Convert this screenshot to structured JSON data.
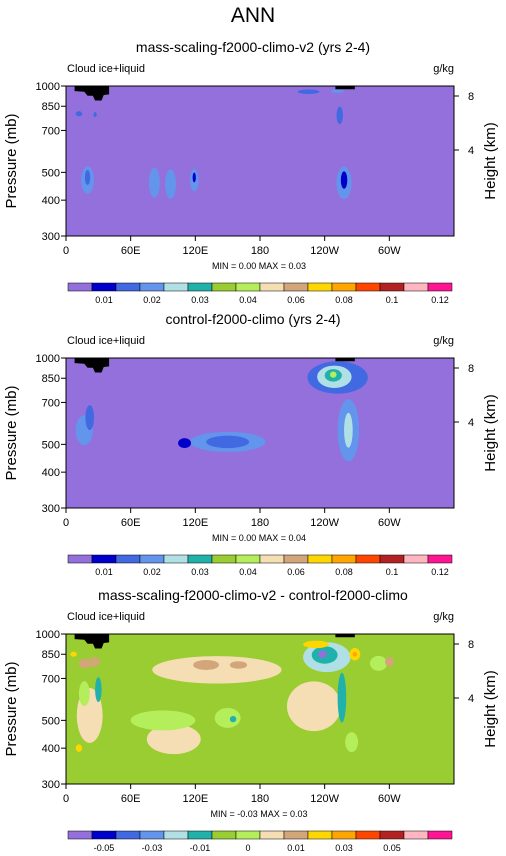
{
  "figure": {
    "title": "ANN"
  },
  "chart_data": [
    {
      "type": "heatmap",
      "title": "mass-scaling-f2000-climo-v2 (yrs 2-4)",
      "left_label": "Cloud ice+liquid",
      "units": "g/kg",
      "xlabel": "",
      "ylabel": "Pressure (mb)",
      "ylabel_right": "Height (km)",
      "x_ticks": [
        "0",
        "60E",
        "120E",
        "180",
        "120W",
        "60W"
      ],
      "x_tick_values": [
        0,
        60,
        120,
        180,
        240,
        300
      ],
      "xlim": [
        0,
        360
      ],
      "y_ticks": [
        "300",
        "400",
        "500",
        "700",
        "850",
        "1000"
      ],
      "y_tick_values": [
        300,
        400,
        500,
        700,
        850,
        1000
      ],
      "ylim": [
        1000,
        300
      ],
      "y_scale": "log",
      "right_ticks": [
        "8",
        "4"
      ],
      "stats": "MIN =   0.00  MAX =  0.03",
      "colorbar": {
        "colors": [
          "#9370DB",
          "#0000CD",
          "#4169E1",
          "#6495ED",
          "#B0E0E6",
          "#20B2AA",
          "#9ACD32",
          "#B4EE5A",
          "#F5DEB3",
          "#D2A679",
          "#FFD700",
          "#FFA500",
          "#FF4500",
          "#B22222",
          "#FFB6C1",
          "#FF1493"
        ],
        "labels": [
          "0.01",
          "0.02",
          "0.03",
          "0.04",
          "0.06",
          "0.08",
          "0.1",
          "0.12"
        ]
      },
      "background_color": "#9370DB",
      "blobs": [
        {
          "x": 20,
          "p": 470,
          "rx": 6,
          "ry": 0.11,
          "color": "#6495ED"
        },
        {
          "x": 20,
          "p": 480,
          "rx": 2.5,
          "ry": 0.06,
          "color": "#4169E1"
        },
        {
          "x": 82,
          "p": 460,
          "rx": 5,
          "ry": 0.12,
          "color": "#6495ED"
        },
        {
          "x": 97,
          "p": 455,
          "rx": 5,
          "ry": 0.12,
          "color": "#6495ED"
        },
        {
          "x": 119,
          "p": 470,
          "rx": 4,
          "ry": 0.09,
          "color": "#6495ED"
        },
        {
          "x": 119,
          "p": 480,
          "rx": 1.5,
          "ry": 0.04,
          "color": "#0000CD"
        },
        {
          "x": 258,
          "p": 460,
          "rx": 7,
          "ry": 0.13,
          "color": "#6495ED"
        },
        {
          "x": 258,
          "p": 470,
          "rx": 3,
          "ry": 0.07,
          "color": "#0000CD"
        },
        {
          "x": 254,
          "p": 790,
          "rx": 3,
          "ry": 0.07,
          "color": "#4169E1"
        },
        {
          "x": 12,
          "p": 800,
          "rx": 3,
          "ry": 0.02,
          "color": "#4169E1"
        },
        {
          "x": 27,
          "p": 795,
          "rx": 1.5,
          "ry": 0.02,
          "color": "#4169E1"
        },
        {
          "x": 225,
          "p": 955,
          "rx": 10,
          "ry": 0.018,
          "color": "#4169E1"
        },
        {
          "x": 252,
          "p": 960,
          "rx": 6,
          "ry": 0.015,
          "color": "#6495ED"
        }
      ],
      "topography": [
        [
          8,
          1000
        ],
        [
          8,
          960
        ],
        [
          17,
          955
        ],
        [
          20,
          925
        ],
        [
          25,
          925
        ],
        [
          27,
          890
        ],
        [
          33,
          890
        ],
        [
          35,
          930
        ],
        [
          40,
          935
        ],
        [
          40,
          1000
        ],
        [
          250,
          1000
        ],
        [
          250,
          975
        ],
        [
          268,
          975
        ],
        [
          268,
          1000
        ]
      ]
    },
    {
      "type": "heatmap",
      "title": "control-f2000-climo (yrs 2-4)",
      "left_label": "Cloud ice+liquid",
      "units": "g/kg",
      "xlabel": "",
      "ylabel": "Pressure (mb)",
      "ylabel_right": "Height (km)",
      "x_ticks": [
        "0",
        "60E",
        "120E",
        "180",
        "120W",
        "60W"
      ],
      "x_tick_values": [
        0,
        60,
        120,
        180,
        240,
        300
      ],
      "xlim": [
        0,
        360
      ],
      "y_ticks": [
        "300",
        "400",
        "500",
        "700",
        "850",
        "1000"
      ],
      "y_tick_values": [
        300,
        400,
        500,
        700,
        850,
        1000
      ],
      "ylim": [
        1000,
        300
      ],
      "y_scale": "log",
      "right_ticks": [
        "8",
        "4"
      ],
      "stats": "MIN =   0.00  MAX =  0.04",
      "colorbar": {
        "colors": [
          "#9370DB",
          "#0000CD",
          "#4169E1",
          "#6495ED",
          "#B0E0E6",
          "#20B2AA",
          "#9ACD32",
          "#B4EE5A",
          "#F5DEB3",
          "#D2A679",
          "#FFD700",
          "#FFA500",
          "#FF4500",
          "#B22222",
          "#FFB6C1",
          "#FF1493"
        ],
        "labels": [
          "0.01",
          "0.02",
          "0.03",
          "0.04",
          "0.06",
          "0.08",
          "0.1",
          "0.12"
        ]
      },
      "background_color": "#9370DB",
      "blobs": [
        {
          "x": 17,
          "p": 560,
          "rx": 8,
          "ry": 0.12,
          "color": "#6495ED"
        },
        {
          "x": 22,
          "p": 620,
          "rx": 4,
          "ry": 0.1,
          "color": "#4169E1"
        },
        {
          "x": 150,
          "p": 510,
          "rx": 35,
          "ry": 0.08,
          "color": "#6495ED"
        },
        {
          "x": 150,
          "p": 510,
          "rx": 20,
          "ry": 0.05,
          "color": "#4169E1"
        },
        {
          "x": 110,
          "p": 505,
          "rx": 6,
          "ry": 0.04,
          "color": "#0000CD"
        },
        {
          "x": 262,
          "p": 560,
          "rx": 10,
          "ry": 0.25,
          "color": "#6495ED"
        },
        {
          "x": 262,
          "p": 560,
          "rx": 4,
          "ry": 0.14,
          "color": "#B0E0E6"
        },
        {
          "x": 252,
          "p": 855,
          "rx": 28,
          "ry": 0.13,
          "color": "#4169E1"
        },
        {
          "x": 249,
          "p": 860,
          "rx": 16,
          "ry": 0.09,
          "color": "#B0E0E6"
        },
        {
          "x": 248,
          "p": 870,
          "rx": 8,
          "ry": 0.05,
          "color": "#20B2AA"
        },
        {
          "x": 248,
          "p": 875,
          "rx": 3,
          "ry": 0.025,
          "color": "#B4EE5A"
        }
      ],
      "topography": [
        [
          8,
          1000
        ],
        [
          8,
          960
        ],
        [
          17,
          955
        ],
        [
          20,
          925
        ],
        [
          25,
          925
        ],
        [
          27,
          890
        ],
        [
          33,
          890
        ],
        [
          35,
          930
        ],
        [
          40,
          935
        ],
        [
          40,
          1000
        ],
        [
          250,
          1000
        ],
        [
          250,
          975
        ],
        [
          268,
          975
        ],
        [
          268,
          1000
        ]
      ]
    },
    {
      "type": "heatmap",
      "title": "mass-scaling-f2000-climo-v2 - control-f2000-climo",
      "left_label": "Cloud ice+liquid",
      "units": "g/kg",
      "xlabel": "",
      "ylabel": "Pressure (mb)",
      "ylabel_right": "Height (km)",
      "x_ticks": [
        "0",
        "60E",
        "120E",
        "180",
        "120W",
        "60W"
      ],
      "x_tick_values": [
        0,
        60,
        120,
        180,
        240,
        300
      ],
      "xlim": [
        0,
        360
      ],
      "y_ticks": [
        "300",
        "400",
        "500",
        "700",
        "850",
        "1000"
      ],
      "y_tick_values": [
        300,
        400,
        500,
        700,
        850,
        1000
      ],
      "ylim": [
        1000,
        300
      ],
      "y_scale": "log",
      "right_ticks": [
        "8",
        "4"
      ],
      "stats": "MIN = -0.03  MAX =  0.03",
      "colorbar": {
        "colors": [
          "#9370DB",
          "#0000CD",
          "#4169E1",
          "#6495ED",
          "#B0E0E6",
          "#20B2AA",
          "#9ACD32",
          "#B4EE5A",
          "#F5DEB3",
          "#D2A679",
          "#FFD700",
          "#FFA500",
          "#FF4500",
          "#B22222",
          "#FFB6C1",
          "#FF1493"
        ],
        "labels": [
          "-0.05",
          "-0.03",
          "-0.01",
          "0",
          "0.01",
          "0.03",
          "0.05"
        ]
      },
      "background_color": "#9ACD32",
      "blobs": [
        {
          "x": 22,
          "p": 520,
          "rx": 12,
          "ry": 0.22,
          "color": "#F5DEB3"
        },
        {
          "x": 17,
          "p": 620,
          "rx": 5,
          "ry": 0.1,
          "color": "#B4EE5A"
        },
        {
          "x": 100,
          "p": 430,
          "rx": 25,
          "ry": 0.12,
          "color": "#F5DEB3"
        },
        {
          "x": 90,
          "p": 500,
          "rx": 30,
          "ry": 0.08,
          "color": "#B4EE5A"
        },
        {
          "x": 230,
          "p": 560,
          "rx": 25,
          "ry": 0.2,
          "color": "#F5DEB3"
        },
        {
          "x": 140,
          "p": 750,
          "rx": 60,
          "ry": 0.11,
          "color": "#F5DEB3"
        },
        {
          "x": 150,
          "p": 510,
          "rx": 12,
          "ry": 0.08,
          "color": "#B4EE5A"
        },
        {
          "x": 155,
          "p": 505,
          "rx": 3,
          "ry": 0.025,
          "color": "#20B2AA"
        },
        {
          "x": 130,
          "p": 780,
          "rx": 12,
          "ry": 0.04,
          "color": "#D2A679"
        },
        {
          "x": 160,
          "p": 780,
          "rx": 8,
          "ry": 0.03,
          "color": "#D2A679"
        },
        {
          "x": 18,
          "p": 790,
          "rx": 6,
          "ry": 0.04,
          "color": "#D2A679"
        },
        {
          "x": 27,
          "p": 800,
          "rx": 4,
          "ry": 0.04,
          "color": "#D2A679"
        },
        {
          "x": 30,
          "p": 640,
          "rx": 3,
          "ry": 0.1,
          "color": "#20B2AA"
        },
        {
          "x": 242,
          "p": 830,
          "rx": 22,
          "ry": 0.12,
          "color": "#B0E0E6"
        },
        {
          "x": 240,
          "p": 845,
          "rx": 12,
          "ry": 0.07,
          "color": "#20B2AA"
        },
        {
          "x": 238,
          "p": 850,
          "rx": 4,
          "ry": 0.03,
          "color": "#9370DB"
        },
        {
          "x": 256,
          "p": 600,
          "rx": 4,
          "ry": 0.2,
          "color": "#20B2AA"
        },
        {
          "x": 232,
          "p": 920,
          "rx": 12,
          "ry": 0.03,
          "color": "#FFD700"
        },
        {
          "x": 268,
          "p": 850,
          "rx": 5,
          "ry": 0.05,
          "color": "#FFD700"
        },
        {
          "x": 268,
          "p": 850,
          "rx": 2,
          "ry": 0.02,
          "color": "#FFA500"
        },
        {
          "x": 290,
          "p": 790,
          "rx": 8,
          "ry": 0.06,
          "color": "#B4EE5A"
        },
        {
          "x": 300,
          "p": 800,
          "rx": 4,
          "ry": 0.04,
          "color": "#D2A679"
        },
        {
          "x": 265,
          "p": 420,
          "rx": 6,
          "ry": 0.08,
          "color": "#B4EE5A"
        },
        {
          "x": 12,
          "p": 400,
          "rx": 3,
          "ry": 0.03,
          "color": "#FFD700"
        },
        {
          "x": 7,
          "p": 850,
          "rx": 3,
          "ry": 0.02,
          "color": "#FFD700"
        }
      ],
      "topography": [
        [
          8,
          1000
        ],
        [
          8,
          960
        ],
        [
          17,
          955
        ],
        [
          20,
          925
        ],
        [
          25,
          925
        ],
        [
          27,
          890
        ],
        [
          33,
          890
        ],
        [
          35,
          930
        ],
        [
          40,
          935
        ],
        [
          40,
          1000
        ],
        [
          250,
          1000
        ],
        [
          250,
          975
        ],
        [
          268,
          975
        ],
        [
          268,
          1000
        ]
      ]
    }
  ]
}
